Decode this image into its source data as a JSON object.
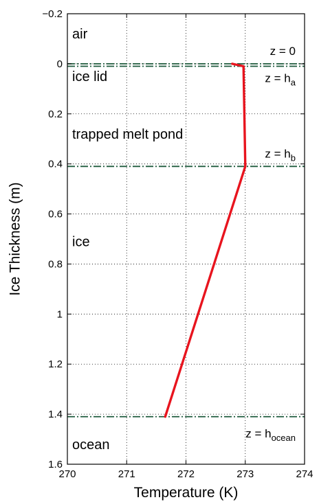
{
  "chart_data": {
    "type": "line",
    "xlabel": "Temperature (K)",
    "ylabel": "Ice Thickness (m)",
    "xlim": [
      270,
      274
    ],
    "ylim": [
      -0.2,
      1.6
    ],
    "y_inverted": true,
    "grid": true,
    "x_ticks": [
      "270",
      "271",
      "272",
      "273",
      "274"
    ],
    "y_ticks": [
      "−0.2",
      "0",
      "0.2",
      "0.4",
      "0.6",
      "0.8",
      "1",
      "1.2",
      "1.4",
      "1.6"
    ],
    "series": [
      {
        "color": "#e8141e",
        "points": [
          {
            "x": 272.78,
            "y": 0.0
          },
          {
            "x": 272.97,
            "y": 0.01
          },
          {
            "x": 273.0,
            "y": 0.41
          },
          {
            "x": 271.65,
            "y": 1.41
          }
        ]
      }
    ],
    "interfaces": [
      {
        "y": 0.0,
        "label_main": "z = 0",
        "label_sub": ""
      },
      {
        "y": 0.01,
        "label_main": "z = h",
        "label_sub": "a"
      },
      {
        "y": 0.41,
        "label_main": "z = h",
        "label_sub": "b"
      },
      {
        "y": 1.41,
        "label_main": "z = h",
        "label_sub": "ocean"
      }
    ],
    "interface_color": "#1e5a3c",
    "regions": [
      {
        "label": "air",
        "y": -0.12
      },
      {
        "label": "ice lid",
        "y": 0.05
      },
      {
        "label": "trapped melt pond",
        "y": 0.28
      },
      {
        "label": "ice",
        "y": 0.71
      },
      {
        "label": "ocean",
        "y": 1.52
      }
    ]
  }
}
